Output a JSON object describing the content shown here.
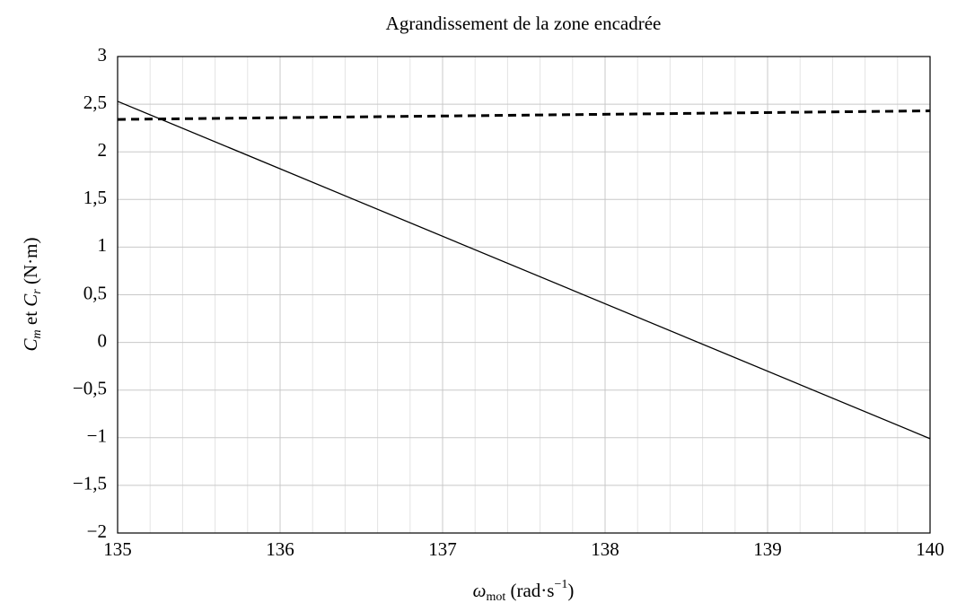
{
  "chart_data": {
    "type": "line",
    "title": "Agrandissement de la zone encadrée",
    "xlabel": [
      "ω",
      "mot",
      " (rad·s",
      "−1",
      ")"
    ],
    "ylabel": [
      "C",
      "m",
      " et ",
      "C",
      "r",
      " (N·m)"
    ],
    "xlim": [
      135,
      140
    ],
    "xticks": [
      135,
      136,
      137,
      138,
      139,
      140
    ],
    "xminorticks": [
      135.2,
      135.4,
      135.6,
      135.8,
      136.2,
      136.4,
      136.6,
      136.8,
      137.2,
      137.4,
      137.6,
      137.8,
      138.2,
      138.4,
      138.6,
      138.8,
      139.2,
      139.4,
      139.6,
      139.8
    ],
    "ylim": [
      -2,
      3
    ],
    "yticks": [
      {
        "value": -2,
        "label": "−2"
      },
      {
        "value": -1.5,
        "label": "−1,5"
      },
      {
        "value": -1,
        "label": "−1"
      },
      {
        "value": -0.5,
        "label": "−0,5"
      },
      0,
      {
        "value": 0.5,
        "label": "0,5"
      },
      1,
      {
        "value": 1.5,
        "label": "1,5"
      },
      2,
      {
        "value": 2.5,
        "label": "2,5"
      },
      3
    ],
    "grid": true,
    "series": [
      {
        "color": "#000000",
        "dash": false,
        "x": [
          135,
          140
        ],
        "values": [
          2.53,
          -1.01
        ]
      },
      {
        "color": "#000000",
        "dash": true,
        "x": [
          135,
          140
        ],
        "values": [
          2.34,
          2.43
        ]
      }
    ]
  }
}
